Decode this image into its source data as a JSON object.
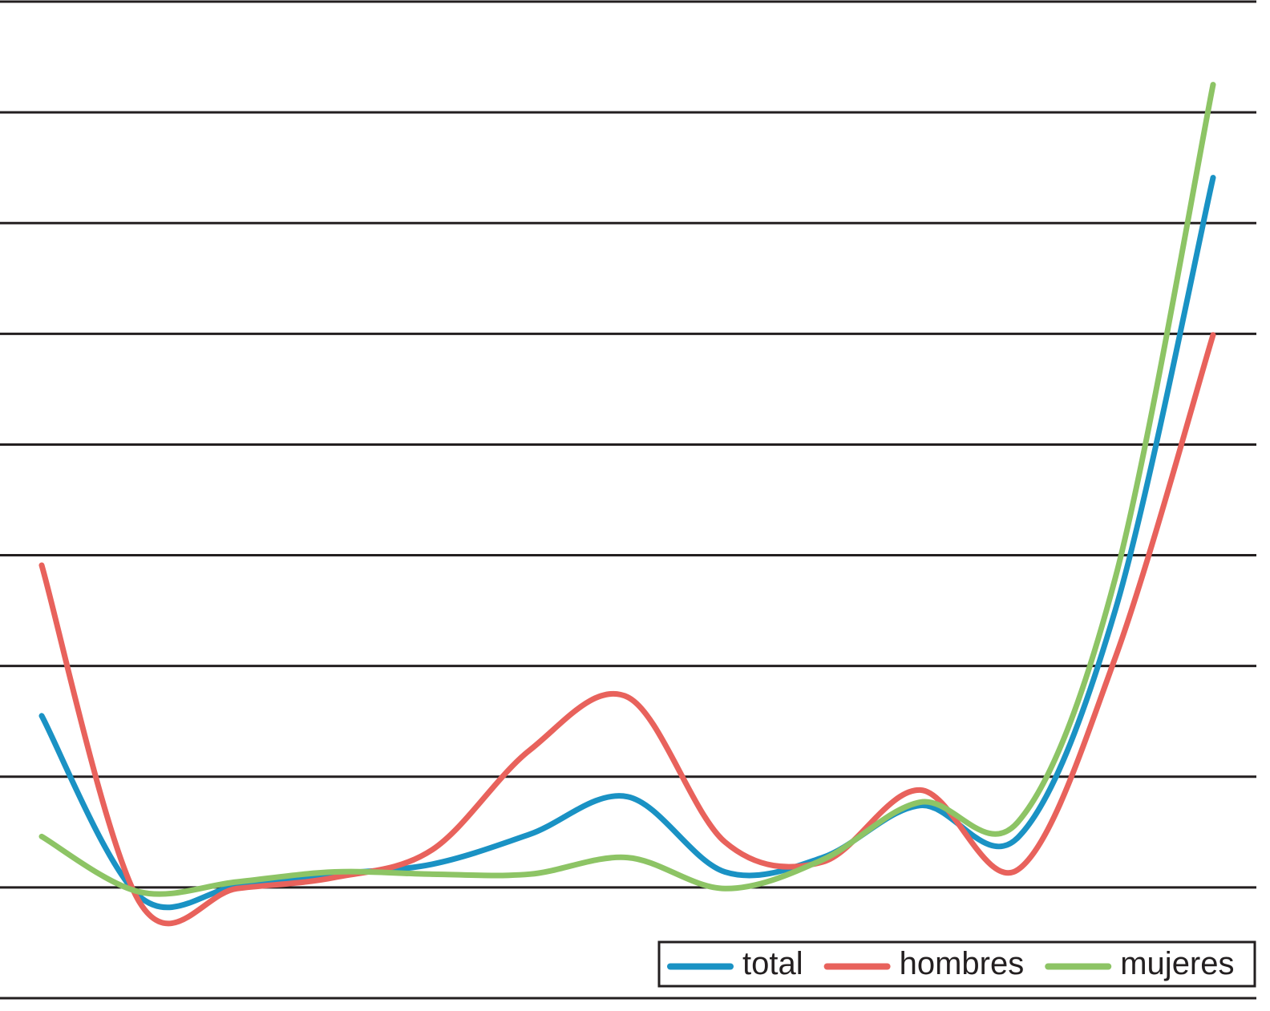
{
  "chart_data": {
    "type": "line",
    "categories": [
      null,
      null,
      null,
      null,
      null,
      null,
      null,
      null,
      null,
      null,
      null,
      null,
      null
    ],
    "series": [
      {
        "name": "total",
        "color": "#1a92c4",
        "values": [
          2.55,
          0.92,
          1.01,
          1.12,
          1.21,
          1.48,
          1.82,
          1.14,
          1.27,
          1.74,
          1.45,
          3.51,
          7.41
        ]
      },
      {
        "name": "hombres",
        "color": "#e8625c",
        "values": [
          3.91,
          0.87,
          0.99,
          1.09,
          1.34,
          2.24,
          2.72,
          1.41,
          1.23,
          1.88,
          1.16,
          3.08,
          5.99
        ]
      },
      {
        "name": "mujeres",
        "color": "#8dc465",
        "values": [
          1.46,
          0.96,
          1.05,
          1.14,
          1.12,
          1.12,
          1.27,
          0.99,
          1.25,
          1.77,
          1.59,
          3.8,
          8.25
        ]
      }
    ],
    "ylim": [
      0,
      9
    ],
    "yticks": [
      0,
      1,
      2,
      3,
      4,
      5,
      6,
      7,
      8,
      9
    ],
    "grid": true,
    "legend": "bottom-right"
  }
}
